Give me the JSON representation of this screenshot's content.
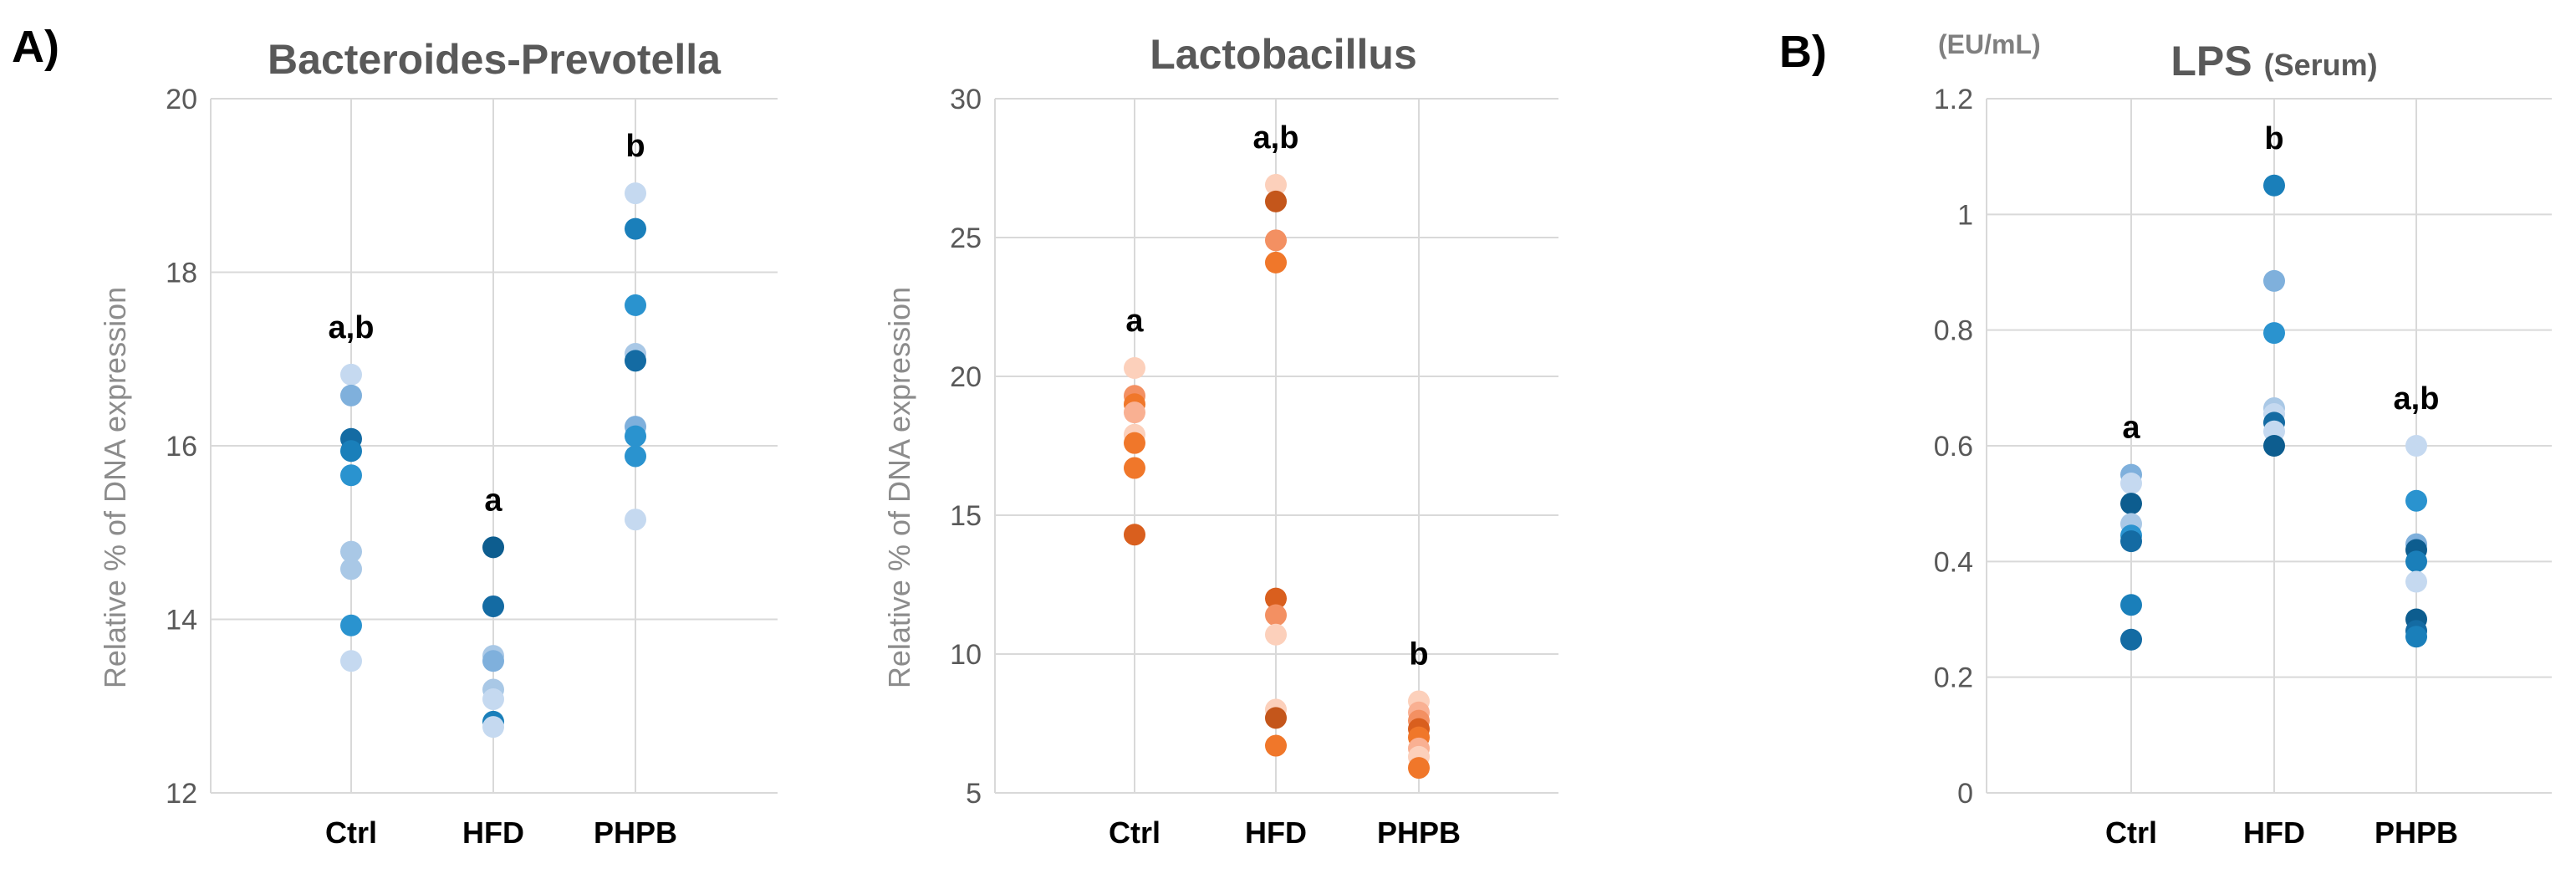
{
  "panel_labels": {
    "a": "A)",
    "b": "B)"
  },
  "chart_data": [
    {
      "type": "scatter",
      "title": "Bacteroides-Prevotella",
      "title_suffix": "",
      "unit_label": "",
      "ylabel": "Relative % of DNA expression",
      "ylim": [
        12,
        20
      ],
      "yticks": [
        12,
        14,
        16,
        18,
        20
      ],
      "ytick_labels": [
        "12",
        "14",
        "16",
        "18",
        "20"
      ],
      "categories": [
        "Ctrl",
        "HFD",
        "PHPB"
      ],
      "significance": [
        "a,b",
        "a",
        "b"
      ],
      "palette": [
        "#c5d9f0",
        "#a9c8e6",
        "#7fb0dc",
        "#2a93cf",
        "#1a7fba",
        "#146ba3",
        "#0d5d8f"
      ],
      "groups": [
        {
          "category": "Ctrl",
          "values": [
            16.82,
            16.58,
            16.08,
            15.94,
            15.66,
            14.78,
            14.58,
            13.93,
            13.52
          ],
          "shades": [
            0,
            2,
            5,
            4,
            3,
            1,
            1,
            3,
            0
          ]
        },
        {
          "category": "HFD",
          "values": [
            14.83,
            14.15,
            13.58,
            13.52,
            13.19,
            13.08,
            12.82,
            12.76
          ],
          "shades": [
            6,
            5,
            1,
            2,
            1,
            0,
            4,
            0
          ]
        },
        {
          "category": "PHPB",
          "values": [
            18.91,
            18.5,
            17.62,
            17.06,
            16.98,
            16.22,
            16.11,
            15.88,
            15.15
          ],
          "shades": [
            0,
            4,
            3,
            1,
            5,
            2,
            3,
            3,
            0
          ]
        }
      ]
    },
    {
      "type": "scatter",
      "title": "Lactobacillus",
      "title_suffix": "",
      "unit_label": "",
      "ylabel": "Relative % of DNA expression",
      "ylim": [
        5,
        30
      ],
      "yticks": [
        5,
        10,
        15,
        20,
        25,
        30
      ],
      "ytick_labels": [
        "5",
        "10",
        "15",
        "20",
        "25",
        "30"
      ],
      "categories": [
        "Ctrl",
        "HFD",
        "PHPB"
      ],
      "significance": [
        "a",
        "a,b",
        "b"
      ],
      "palette": [
        "#fcd0bb",
        "#f9b092",
        "#f39062",
        "#f0772a",
        "#d95f1e",
        "#c4561b"
      ],
      "groups": [
        {
          "category": "Ctrl",
          "values": [
            20.3,
            19.3,
            19.0,
            18.7,
            17.9,
            17.6,
            16.7,
            14.3
          ],
          "shades": [
            0,
            2,
            3,
            1,
            0,
            3,
            3,
            4
          ]
        },
        {
          "category": "HFD",
          "values": [
            26.9,
            26.3,
            24.9,
            24.1,
            12.0,
            11.4,
            10.7,
            8.0,
            7.7,
            6.7
          ],
          "shades": [
            0,
            5,
            2,
            3,
            4,
            2,
            0,
            0,
            5,
            3
          ]
        },
        {
          "category": "PHPB",
          "values": [
            8.3,
            7.9,
            7.6,
            7.3,
            7.0,
            6.6,
            6.3,
            5.9
          ],
          "shades": [
            0,
            1,
            2,
            4,
            3,
            1,
            0,
            3
          ]
        }
      ]
    },
    {
      "type": "scatter",
      "title": "LPS",
      "title_suffix": "(Serum)",
      "unit_label": "(EU/mL)",
      "ylabel": "",
      "ylim": [
        0,
        1.2
      ],
      "yticks": [
        0,
        0.2,
        0.4,
        0.6,
        0.8,
        1.0,
        1.2
      ],
      "ytick_labels": [
        "0",
        "0.2",
        "0.4",
        "0.6",
        "0.8",
        "1",
        "1.2"
      ],
      "categories": [
        "Ctrl",
        "HFD",
        "PHPB"
      ],
      "significance": [
        "a",
        "b",
        "a,b"
      ],
      "palette": [
        "#c5d9f0",
        "#a9c8e6",
        "#7fb0dc",
        "#2a93cf",
        "#1a7fba",
        "#146ba3",
        "#0d5d8f"
      ],
      "groups": [
        {
          "category": "Ctrl",
          "values": [
            0.55,
            0.535,
            0.5,
            0.465,
            0.445,
            0.435,
            0.325,
            0.265
          ],
          "shades": [
            2,
            0,
            6,
            1,
            3,
            5,
            4,
            5
          ]
        },
        {
          "category": "HFD",
          "values": [
            1.05,
            0.885,
            0.795,
            0.665,
            0.655,
            0.64,
            0.625,
            0.6
          ],
          "shades": [
            4,
            2,
            3,
            1,
            0,
            5,
            0,
            6
          ]
        },
        {
          "category": "PHPB",
          "values": [
            0.6,
            0.505,
            0.43,
            0.42,
            0.4,
            0.365,
            0.3,
            0.28,
            0.27
          ],
          "shades": [
            0,
            3,
            2,
            6,
            4,
            0,
            6,
            5,
            4
          ]
        }
      ]
    }
  ]
}
